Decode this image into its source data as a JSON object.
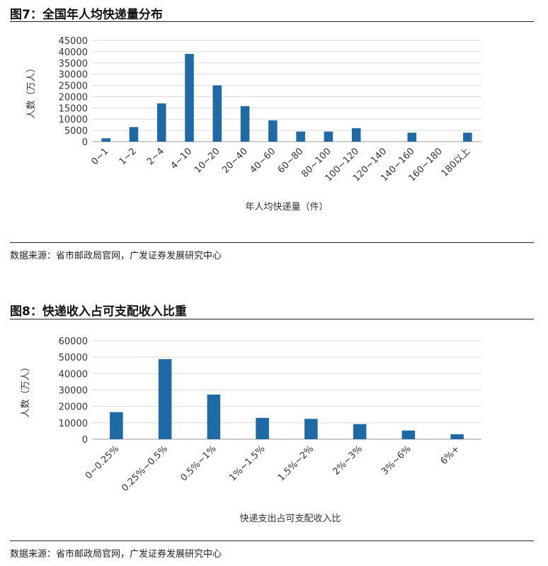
{
  "figures": [
    {
      "title": "图7：全国年人均快递量分布",
      "source": "数据来源：省市邮政局官网，广发证券发展研究中心"
    },
    {
      "title": "图8：快递收入占可支配收入比重",
      "source": "数据来源：省市邮政局官网，广发证券发展研究中心"
    }
  ],
  "chart_data": [
    {
      "type": "bar",
      "title": "",
      "xlabel": "年人均快递量（件）",
      "ylabel": "人数（万人）",
      "categories": [
        "0~1",
        "1~2",
        "2~4",
        "4~10",
        "10~20",
        "20~40",
        "40~60",
        "60~80",
        "80~100",
        "100~120",
        "120~140",
        "140~160",
        "160~180",
        "180以上"
      ],
      "values": [
        1500,
        6500,
        17000,
        39000,
        25000,
        15800,
        9500,
        4500,
        4500,
        6000,
        0,
        4000,
        0,
        4000
      ],
      "yticks": [
        0,
        5000,
        10000,
        15000,
        20000,
        25000,
        30000,
        35000,
        40000,
        45000
      ],
      "ylim": [
        0,
        45000
      ],
      "grid": true,
      "bar_color": "#1f6aa5"
    },
    {
      "type": "bar",
      "title": "",
      "xlabel": "快递支出占可支配收入比",
      "ylabel": "人数（万人）",
      "categories": [
        "0~0.25%",
        "0.25%~0.5%",
        "0.5%~1%",
        "1%~1.5%",
        "1.5%~2%",
        "2%~3%",
        "3%~6%",
        "6%+"
      ],
      "values": [
        16500,
        48800,
        27200,
        13000,
        12400,
        9200,
        5300,
        3000
      ],
      "yticks": [
        0,
        10000,
        20000,
        30000,
        40000,
        50000,
        60000
      ],
      "ylim": [
        0,
        60000
      ],
      "grid": true,
      "bar_color": "#1f6aa5"
    }
  ]
}
